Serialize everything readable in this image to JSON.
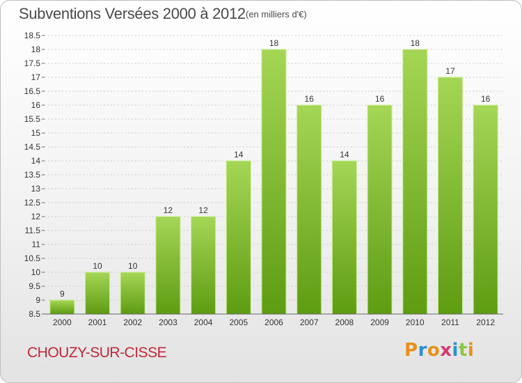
{
  "header": {
    "title": "Subventions Versées 2000 à 2012",
    "subtitle": "(en milliers d'€)"
  },
  "footer": {
    "commune": "CHOUZY-SUR-CISSE",
    "logo_text": "Proxiti",
    "logo_colors": [
      "#e8901a",
      "#2a8fd6",
      "#e8901a",
      "#d23a6e",
      "#2a8fd6",
      "#8cc63f",
      "#e8901a"
    ]
  },
  "colors": {
    "bar_top": "#a5d656",
    "bar_bottom": "#5e9c12",
    "bar_edge": "#c9ec8c",
    "grid": "#cccccc",
    "axis": "#666666",
    "commune": "#c0283a"
  },
  "chart_data": {
    "type": "bar",
    "title": "Subventions Versées 2000 à 2012",
    "subtitle": "(en milliers d'€)",
    "categories": [
      "2000",
      "2001",
      "2002",
      "2003",
      "2004",
      "2005",
      "2006",
      "2007",
      "2008",
      "2009",
      "2010",
      "2011",
      "2012"
    ],
    "values": [
      9,
      10,
      10,
      12,
      12,
      14,
      18,
      16,
      14,
      16,
      18,
      17,
      16
    ],
    "data_labels": [
      "9",
      "10",
      "10",
      "12",
      "12",
      "14",
      "18",
      "16",
      "14",
      "16",
      "18",
      "17",
      "16"
    ],
    "ylim": [
      8.5,
      18.5
    ],
    "yticks": [
      "8.5",
      "9",
      "9.5",
      "10",
      "10.5",
      "11",
      "11.5",
      "12",
      "12.5",
      "13",
      "13.5",
      "14",
      "14.5",
      "15",
      "15.5",
      "16",
      "16.5",
      "17",
      "17.5",
      "18",
      "18.5"
    ],
    "grid": true,
    "legend": "none"
  }
}
